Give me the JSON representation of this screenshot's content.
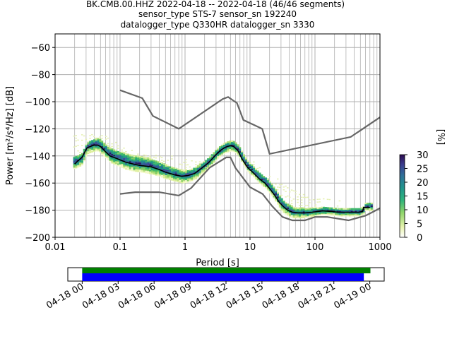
{
  "chart_data": {
    "type": "heatmap",
    "title_lines": [
      "BK.CMB.00.HHZ   2022-04-18 -- 2022-04-18  (46/46 segments)",
      "sensor_type STS-7 sensor_sn 192240",
      "datalogger_type Q330HR datalogger_sn 3330"
    ],
    "xlabel": "Period [s]",
    "ylabel": "Power [m²/s⁴/Hz] [dB]",
    "x_scale": "log",
    "xlim": [
      0.01,
      1000
    ],
    "ylim": [
      -200,
      -50
    ],
    "x_ticks": [
      {
        "value": 0.01,
        "label": "0.01"
      },
      {
        "value": 0.1,
        "label": "0.1"
      },
      {
        "value": 1,
        "label": "1"
      },
      {
        "value": 10,
        "label": "10"
      },
      {
        "value": 100,
        "label": "100"
      },
      {
        "value": 1000,
        "label": "1000"
      }
    ],
    "y_ticks": [
      {
        "value": -60,
        "label": "−60"
      },
      {
        "value": -80,
        "label": "−80"
      },
      {
        "value": -100,
        "label": "−100"
      },
      {
        "value": -120,
        "label": "−120"
      },
      {
        "value": -140,
        "label": "−140"
      },
      {
        "value": -160,
        "label": "−160"
      },
      {
        "value": -180,
        "label": "−180"
      },
      {
        "value": -200,
        "label": "−200"
      }
    ],
    "grid": true,
    "colorbar": {
      "label": "[%]",
      "range": [
        0,
        30
      ],
      "ticks": [
        {
          "value": 0,
          "label": "0"
        },
        {
          "value": 5,
          "label": "5"
        },
        {
          "value": 10,
          "label": "10"
        },
        {
          "value": 15,
          "label": "15"
        },
        {
          "value": 20,
          "label": "20"
        },
        {
          "value": 25,
          "label": "25"
        },
        {
          "value": 30,
          "label": "30"
        }
      ]
    },
    "noise_model_high": [
      [
        0.1,
        -91.5
      ],
      [
        0.22,
        -97.4
      ],
      [
        0.32,
        -110.5
      ],
      [
        0.8,
        -120
      ],
      [
        3.8,
        -98
      ],
      [
        4.6,
        -96.5
      ],
      [
        6.3,
        -101
      ],
      [
        7.9,
        -113.5
      ],
      [
        15.4,
        -120
      ],
      [
        20,
        -138.5
      ],
      [
        354.8,
        -126
      ],
      [
        1000,
        -111.5
      ]
    ],
    "noise_model_low": [
      [
        0.1,
        -168
      ],
      [
        0.17,
        -166.7
      ],
      [
        0.4,
        -166.7
      ],
      [
        0.8,
        -169.2
      ],
      [
        1.24,
        -163.7
      ],
      [
        2.4,
        -148.6
      ],
      [
        4.3,
        -141.1
      ],
      [
        5,
        -141.1
      ],
      [
        6,
        -149
      ],
      [
        10,
        -163
      ],
      [
        15.6,
        -168
      ],
      [
        21.9,
        -177
      ],
      [
        31.6,
        -185
      ],
      [
        45,
        -187.5
      ],
      [
        70,
        -187.5
      ],
      [
        100,
        -185
      ],
      [
        154,
        -185
      ],
      [
        328,
        -187.5
      ],
      [
        600,
        -184
      ],
      [
        800,
        -181
      ],
      [
        1000,
        -178.5
      ]
    ],
    "mode_curve": [
      [
        0.02,
        -146
      ],
      [
        0.022,
        -144
      ],
      [
        0.026,
        -141
      ],
      [
        0.028,
        -138
      ],
      [
        0.031,
        -134
      ],
      [
        0.035,
        -133
      ],
      [
        0.04,
        -132
      ],
      [
        0.045,
        -132
      ],
      [
        0.05,
        -133
      ],
      [
        0.06,
        -137
      ],
      [
        0.07,
        -140
      ],
      [
        0.09,
        -142
      ],
      [
        0.12,
        -144.5
      ],
      [
        0.16,
        -146
      ],
      [
        0.2,
        -147
      ],
      [
        0.3,
        -148
      ],
      [
        0.4,
        -150
      ],
      [
        0.5,
        -152
      ],
      [
        0.7,
        -154
      ],
      [
        0.9,
        -155
      ],
      [
        1.1,
        -154.5
      ],
      [
        1.4,
        -153
      ],
      [
        1.8,
        -149
      ],
      [
        2.3,
        -145
      ],
      [
        3,
        -139
      ],
      [
        3.5,
        -136
      ],
      [
        4,
        -134
      ],
      [
        4.5,
        -133
      ],
      [
        5,
        -132.5
      ],
      [
        5.6,
        -133
      ],
      [
        6.5,
        -136
      ],
      [
        7.5,
        -142
      ],
      [
        9,
        -148
      ],
      [
        11,
        -152
      ],
      [
        14,
        -157
      ],
      [
        17,
        -160
      ],
      [
        20,
        -164
      ],
      [
        24,
        -169
      ],
      [
        28,
        -174
      ],
      [
        32,
        -177
      ],
      [
        38,
        -180
      ],
      [
        45,
        -181.5
      ],
      [
        55,
        -182
      ],
      [
        70,
        -182
      ],
      [
        90,
        -181.5
      ],
      [
        110,
        -181
      ],
      [
        130,
        -180.5
      ],
      [
        180,
        -181
      ],
      [
        230,
        -181.5
      ],
      [
        330,
        -181.5
      ],
      [
        470,
        -181.5
      ],
      [
        540,
        -181
      ],
      [
        560,
        -178
      ],
      [
        610,
        -178
      ],
      [
        700,
        -178
      ]
    ],
    "density_core": [
      [
        0.019,
        -144
      ],
      [
        0.022,
        -143
      ],
      [
        0.026,
        -141
      ],
      [
        0.028,
        -136
      ],
      [
        0.031,
        -133
      ],
      [
        0.035,
        -132
      ],
      [
        0.04,
        -131
      ],
      [
        0.045,
        -131
      ],
      [
        0.05,
        -132.5
      ],
      [
        0.06,
        -136
      ],
      [
        0.07,
        -139
      ],
      [
        0.09,
        -141
      ],
      [
        0.12,
        -143.5
      ],
      [
        0.16,
        -145
      ],
      [
        0.2,
        -145.5
      ],
      [
        0.3,
        -147
      ],
      [
        0.4,
        -149
      ],
      [
        0.5,
        -151
      ],
      [
        0.7,
        -153
      ],
      [
        0.9,
        -154.5
      ],
      [
        1.1,
        -154
      ],
      [
        1.4,
        -152
      ],
      [
        1.8,
        -148
      ],
      [
        2.3,
        -144
      ],
      [
        3,
        -138
      ],
      [
        3.5,
        -135.5
      ],
      [
        4,
        -133.5
      ],
      [
        4.5,
        -132.5
      ],
      [
        5,
        -132
      ],
      [
        5.6,
        -132.5
      ],
      [
        6.5,
        -135.5
      ],
      [
        7.5,
        -141
      ],
      [
        9,
        -147
      ],
      [
        11,
        -151
      ],
      [
        14,
        -156
      ],
      [
        17,
        -159
      ],
      [
        20,
        -163
      ],
      [
        24,
        -168
      ],
      [
        28,
        -173
      ],
      [
        32,
        -176.5
      ],
      [
        38,
        -179.5
      ],
      [
        45,
        -181
      ],
      [
        55,
        -181.5
      ],
      [
        70,
        -181.5
      ],
      [
        90,
        -181
      ],
      [
        110,
        -180.5
      ],
      [
        130,
        -180
      ],
      [
        180,
        -180.5
      ],
      [
        230,
        -181
      ],
      [
        330,
        -181
      ],
      [
        470,
        -181
      ],
      [
        540,
        -180
      ],
      [
        560,
        -177
      ],
      [
        610,
        -177
      ],
      [
        700,
        -177
      ]
    ],
    "density_spread_up": [
      [
        0.02,
        3
      ],
      [
        0.04,
        4
      ],
      [
        0.1,
        5
      ],
      [
        0.3,
        5
      ],
      [
        1,
        4
      ],
      [
        3,
        3
      ],
      [
        10,
        3
      ],
      [
        30,
        4
      ],
      [
        100,
        3
      ],
      [
        300,
        2
      ],
      [
        700,
        2
      ]
    ],
    "density_spread_down": [
      [
        0.02,
        5
      ],
      [
        0.04,
        5
      ],
      [
        0.1,
        6
      ],
      [
        0.3,
        6
      ],
      [
        1,
        5
      ],
      [
        3,
        4
      ],
      [
        10,
        4
      ],
      [
        30,
        5
      ],
      [
        100,
        3
      ],
      [
        300,
        3
      ],
      [
        700,
        3
      ]
    ],
    "faint_halo": [
      [
        0.03,
        -124
      ],
      [
        0.04,
        -123
      ],
      [
        0.06,
        -125
      ],
      [
        0.1,
        -132
      ],
      [
        0.2,
        -138
      ],
      [
        0.4,
        -139
      ],
      [
        0.7,
        -140
      ],
      [
        1,
        -142
      ],
      [
        2,
        -142
      ],
      [
        4,
        -135
      ],
      [
        8,
        -140
      ],
      [
        12,
        -145
      ],
      [
        20,
        -152
      ],
      [
        40,
        -163
      ],
      [
        80,
        -170
      ],
      [
        150,
        -171
      ],
      [
        250,
        -172
      ]
    ],
    "timeline": {
      "x_ticks": [
        "04-18 00",
        "04-18 03",
        "04-18 06",
        "04-18 09",
        "04-18 12",
        "04-18 15",
        "04-18 18",
        "04-18 21",
        "04-19 00"
      ],
      "bar_green": {
        "start_hours": 0,
        "end_hours": 24.05,
        "color": "#008000"
      },
      "bar_blue": {
        "start_hours": 0,
        "end_hours": 23.5,
        "color": "#0000ff"
      },
      "range_hours": [
        -1.2,
        25.2
      ]
    }
  }
}
